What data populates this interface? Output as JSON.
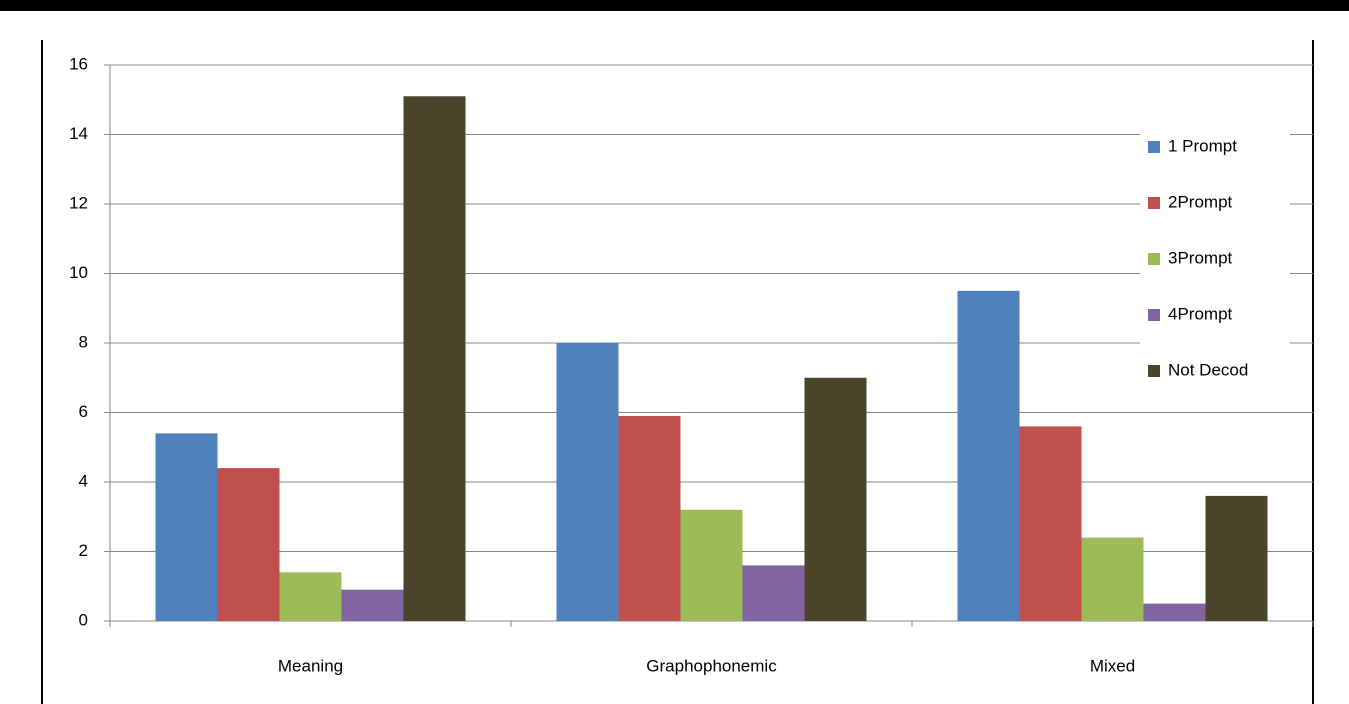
{
  "chart_data": {
    "type": "bar",
    "categories": [
      "Meaning",
      "Graphophonemic",
      "Mixed"
    ],
    "series": [
      {
        "name": "1 Prompt",
        "color": "#4f81bd",
        "values": [
          5.4,
          8.0,
          9.5
        ]
      },
      {
        "name": "2Prompt",
        "color": "#c0504d",
        "values": [
          4.4,
          5.9,
          5.6
        ]
      },
      {
        "name": "3Prompt",
        "color": "#9bbb59",
        "values": [
          1.4,
          3.2,
          2.4
        ]
      },
      {
        "name": "4Prompt",
        "color": "#8064a2",
        "values": [
          0.9,
          1.6,
          0.5
        ]
      },
      {
        "name": "Not Decod",
        "color": "#4a452a",
        "values": [
          15.1,
          7.0,
          3.6
        ]
      }
    ],
    "ylim": [
      0,
      16
    ],
    "yticks": [
      0,
      2,
      4,
      6,
      8,
      10,
      12,
      14,
      16
    ],
    "grid": true,
    "legend": "right"
  }
}
